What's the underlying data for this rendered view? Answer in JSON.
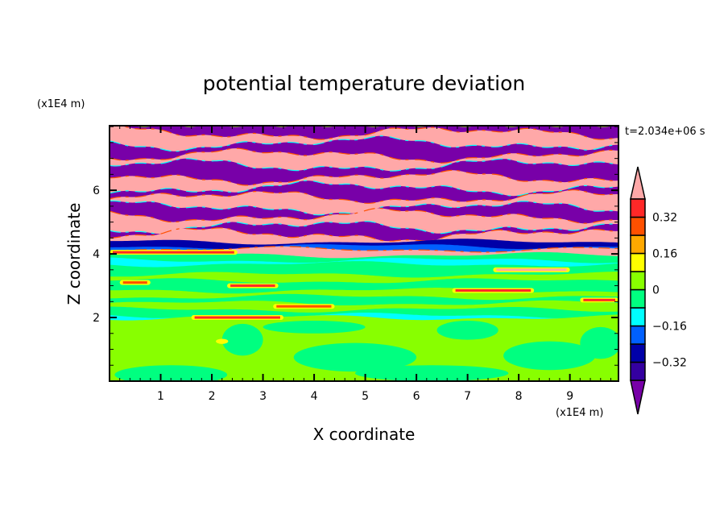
{
  "chart_data": {
    "type": "heatmap",
    "title": "potential temperature deviation",
    "xlabel": "X coordinate",
    "ylabel": "Z coordinate",
    "x_unit": "(x1E4 m)",
    "z_unit": "(x1E4 m)",
    "time_label": "t=2.034e+06 s",
    "xlim": [
      0,
      9.95
    ],
    "ylim": [
      0,
      8.03
    ],
    "x_ticks": [
      1,
      2,
      3,
      4,
      5,
      6,
      7,
      8,
      9
    ],
    "x_tick_labels": [
      "1",
      "2",
      "3",
      "4",
      "5",
      "6",
      "7",
      "8",
      "9"
    ],
    "x_minor_step": 0.2,
    "y_ticks": [
      2,
      4,
      6
    ],
    "y_tick_labels": [
      "2",
      "4",
      "6"
    ],
    "y_minor_step": 0.5,
    "colorbar": {
      "levels": [
        -0.4,
        -0.32,
        -0.24,
        -0.16,
        -0.08,
        0,
        0.08,
        0.16,
        0.24,
        0.32,
        0.4
      ],
      "colors": [
        "#7800a8",
        "#3400a0",
        "#0000a8",
        "#0060ff",
        "#00ffff",
        "#00ff80",
        "#88ff00",
        "#ffff00",
        "#ffa800",
        "#ff5000",
        "#ff2828",
        "#ffa8a8"
      ],
      "labels": [
        {
          "value": 0.32,
          "text": "0.32"
        },
        {
          "value": 0.16,
          "text": "0.16"
        },
        {
          "value": 0,
          "text": "0"
        },
        {
          "value": -0.16,
          "text": "−0.16"
        },
        {
          "value": -0.32,
          "text": "−0.32"
        }
      ],
      "extend": "both"
    },
    "field": {
      "note_levels": "level index into colorbar.colors",
      "bands": [
        {
          "ztop": 8.03,
          "level": 0
        },
        {
          "ztop": 7.8,
          "level": 11
        },
        {
          "ztop": 7.47,
          "level": 0
        },
        {
          "ztop": 7.1,
          "level": 11
        },
        {
          "ztop": 6.78,
          "level": 0
        },
        {
          "ztop": 6.4,
          "level": 11
        },
        {
          "ztop": 6.07,
          "level": 0
        },
        {
          "ztop": 5.78,
          "level": 11
        },
        {
          "ztop": 5.45,
          "level": 0
        },
        {
          "ztop": 5.2,
          "level": 11
        },
        {
          "ztop": 4.85,
          "level": 0
        },
        {
          "ztop": 4.6,
          "level": 11
        },
        {
          "ztop": 4.38,
          "level": 2
        },
        {
          "ztop": 4.24,
          "level": 3
        },
        {
          "ztop": 4.14,
          "level": 11
        },
        {
          "ztop": 3.96,
          "level": 5
        },
        {
          "ztop": 3.8,
          "level": 4
        },
        {
          "ztop": 3.68,
          "level": 5
        },
        {
          "ztop": 3.35,
          "level": 6
        },
        {
          "ztop": 3.15,
          "level": 5
        },
        {
          "ztop": 2.85,
          "level": 6
        },
        {
          "ztop": 2.65,
          "level": 5
        },
        {
          "ztop": 2.45,
          "level": 6
        },
        {
          "ztop": 2.25,
          "level": 5
        },
        {
          "ztop": 2.06,
          "level": 4
        },
        {
          "ztop": 2.0,
          "level": 6
        }
      ],
      "blobs": [
        {
          "x": 4.8,
          "z": 0.75,
          "rx": 1.2,
          "rz": 0.45,
          "level": 5
        },
        {
          "x": 8.6,
          "z": 0.8,
          "rx": 0.9,
          "rz": 0.45,
          "level": 5
        },
        {
          "x": 1.2,
          "z": 0.2,
          "rx": 1.1,
          "rz": 0.3,
          "level": 5
        },
        {
          "x": 6.3,
          "z": 0.25,
          "rx": 1.5,
          "rz": 0.25,
          "level": 5
        },
        {
          "x": 2.6,
          "z": 1.3,
          "rx": 0.4,
          "rz": 0.5,
          "level": 5
        },
        {
          "x": 4.0,
          "z": 1.7,
          "rx": 1.0,
          "rz": 0.2,
          "level": 5
        },
        {
          "x": 7.0,
          "z": 1.6,
          "rx": 0.6,
          "rz": 0.3,
          "level": 5
        },
        {
          "x": 9.6,
          "z": 1.2,
          "rx": 0.4,
          "rz": 0.5,
          "level": 5
        },
        {
          "x": 2.2,
          "z": 1.25,
          "rx": 0.12,
          "rz": 0.08,
          "level": 7
        }
      ],
      "streaks": [
        {
          "x0": 2.3,
          "x1": 3.3,
          "z": 3.0,
          "level": 10
        },
        {
          "x0": 6.7,
          "x1": 8.3,
          "z": 2.85,
          "level": 10
        },
        {
          "x0": 1.6,
          "x1": 3.4,
          "z": 2.0,
          "level": 10
        },
        {
          "x0": 9.2,
          "x1": 9.95,
          "z": 2.55,
          "level": 10
        },
        {
          "x0": 3.2,
          "x1": 4.4,
          "z": 2.35,
          "level": 9
        },
        {
          "x0": 7.5,
          "x1": 9.0,
          "z": 3.5,
          "level": 11
        },
        {
          "x0": 0.2,
          "x1": 0.8,
          "z": 3.1,
          "level": 9
        },
        {
          "x0": 0.0,
          "x1": 2.5,
          "z": 4.05,
          "level": 10
        }
      ]
    }
  }
}
